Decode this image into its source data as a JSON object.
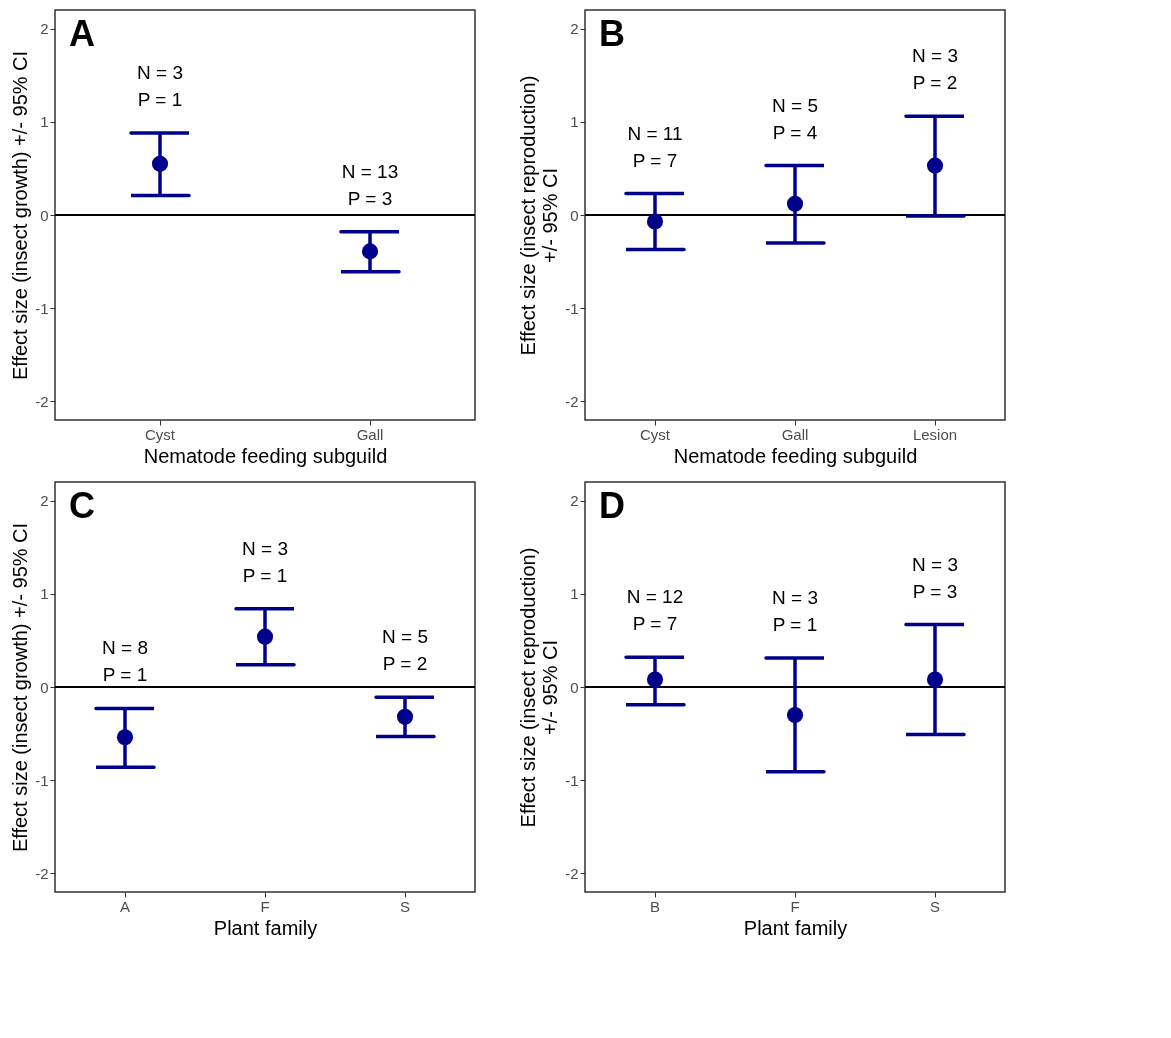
{
  "chart_data": [
    {
      "type": "scatter",
      "title": "A",
      "xlabel": "Nematode feeding subguild",
      "ylabel": "Effect size (insect growth) +/- 95% CI",
      "categories": [
        "Cyst",
        "Gall"
      ],
      "series": [
        {
          "color": "#00008b",
          "values": [
            0.55,
            -0.39
          ],
          "errors": [
            [
              0.21,
              0.88
            ],
            [
              -0.61,
              -0.18
            ]
          ]
        }
      ],
      "ylim": [
        -2.2,
        2.2
      ],
      "yticks": [
        -2,
        -1,
        0,
        1,
        2
      ],
      "marker": "circle",
      "ref_lines": [
        {
          "axis": "y",
          "value": 0
        }
      ],
      "annotations": [
        "N = 3\nP = 1",
        "N = 13\nP = 3"
      ]
    },
    {
      "type": "scatter",
      "title": "B",
      "xlabel": "Nematode feeding subguild",
      "ylabel": "Effect size (insect reproduction)\n+/- 95% CI",
      "categories": [
        "Cyst",
        "Gall",
        "Lesion"
      ],
      "series": [
        {
          "color": "#00008b",
          "values": [
            -0.07,
            0.12,
            0.53
          ],
          "errors": [
            [
              -0.37,
              0.23
            ],
            [
              -0.3,
              0.53
            ],
            [
              -0.01,
              1.06
            ]
          ]
        }
      ],
      "ylim": [
        -2.2,
        2.2
      ],
      "yticks": [
        -2,
        -1,
        0,
        1,
        2
      ],
      "marker": "circle",
      "ref_lines": [
        {
          "axis": "y",
          "value": 0
        }
      ],
      "annotations": [
        "N = 11\nP = 7",
        "N = 5\nP = 4",
        "N = 3\nP = 2"
      ]
    },
    {
      "type": "scatter",
      "title": "C",
      "xlabel": "Plant family",
      "ylabel": "Effect size (insect growth) +/- 95% CI",
      "categories": [
        "A",
        "F",
        "S"
      ],
      "series": [
        {
          "color": "#00008b",
          "values": [
            -0.54,
            0.54,
            -0.32
          ],
          "errors": [
            [
              -0.86,
              -0.23
            ],
            [
              0.24,
              0.84
            ],
            [
              -0.53,
              -0.11
            ]
          ]
        }
      ],
      "ylim": [
        -2.2,
        2.2
      ],
      "yticks": [
        -2,
        -1,
        0,
        1,
        2
      ],
      "marker": "circle",
      "ref_lines": [
        {
          "axis": "y",
          "value": 0
        }
      ],
      "annotations": [
        "N = 8\nP = 1",
        "N = 3\nP = 1",
        "N = 5\nP = 2"
      ]
    },
    {
      "type": "scatter",
      "title": "D",
      "xlabel": "Plant family",
      "ylabel": "Effect size (insect reproduction)\n+/- 95% CI",
      "categories": [
        "B",
        "F",
        "S"
      ],
      "series": [
        {
          "color": "#00008b",
          "values": [
            0.08,
            -0.3,
            0.08
          ],
          "errors": [
            [
              -0.19,
              0.32
            ],
            [
              -0.91,
              0.31
            ],
            [
              -0.51,
              0.67
            ]
          ]
        }
      ],
      "ylim": [
        -2.2,
        2.2
      ],
      "yticks": [
        -2,
        -1,
        0,
        1,
        2
      ],
      "marker": "circle",
      "ref_lines": [
        {
          "axis": "y",
          "value": 0
        }
      ],
      "annotations": [
        "N = 12\nP = 7",
        "N = 3\nP = 1",
        "N = 3\nP = 3"
      ]
    }
  ]
}
